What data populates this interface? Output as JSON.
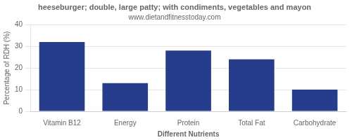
{
  "chart_data": {
    "type": "bar",
    "title": "heeseburger; double, large patty; with condiments, vegetables and mayon",
    "subtitle": "www.dietandfitnesstoday.com",
    "xlabel": "Different Nutrients",
    "ylabel": "Percentage of RDH (%)",
    "categories": [
      "Vitamin B12",
      "Energy",
      "Protein",
      "Total Fat",
      "Carbohydrate"
    ],
    "values": [
      32,
      13,
      28,
      24,
      10
    ],
    "color": "#253d8a",
    "ylim": [
      0,
      40
    ],
    "yticks": [
      0,
      10,
      20,
      30,
      40
    ],
    "grid": true
  }
}
